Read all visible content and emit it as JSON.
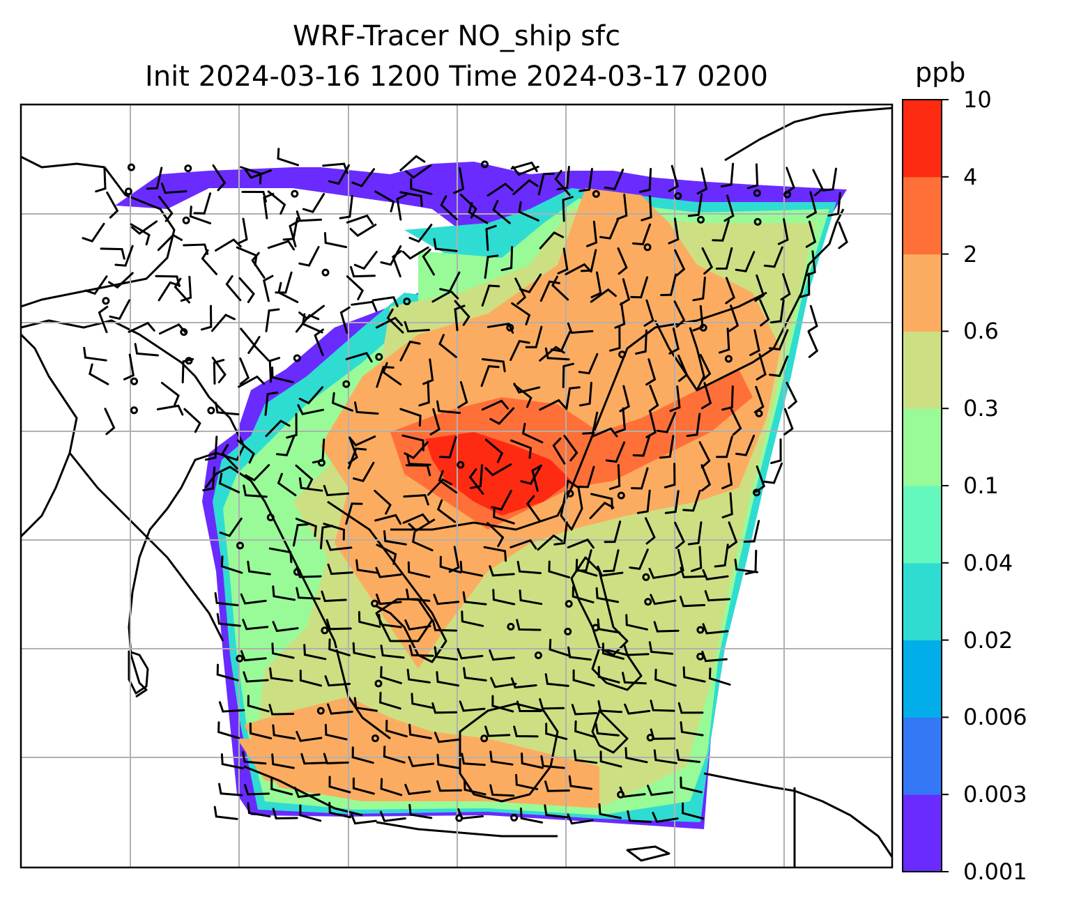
{
  "title": {
    "line1": "WRF-Tracer NO_ship sfc",
    "line2": "Init 2024-03-16 1200 Time 2024-03-17 0200"
  },
  "colorbar": {
    "units": "ppb",
    "levels": [
      "0.001",
      "0.003",
      "0.006",
      "0.02",
      "0.04",
      "0.1",
      "0.3",
      "0.6",
      "2",
      "4",
      "10"
    ],
    "colors": [
      "#6a2bff",
      "#3478f6",
      "#02aeea",
      "#2fdcd2",
      "#64f8bf",
      "#98fb98",
      "#cce083",
      "#fcac60",
      "#ff7038",
      "#ff2a12"
    ]
  },
  "map": {
    "background": "#ffffff",
    "gridline_color": "#b0b0b0",
    "coastline_color": "#000000",
    "barb_color": "#000000"
  }
}
